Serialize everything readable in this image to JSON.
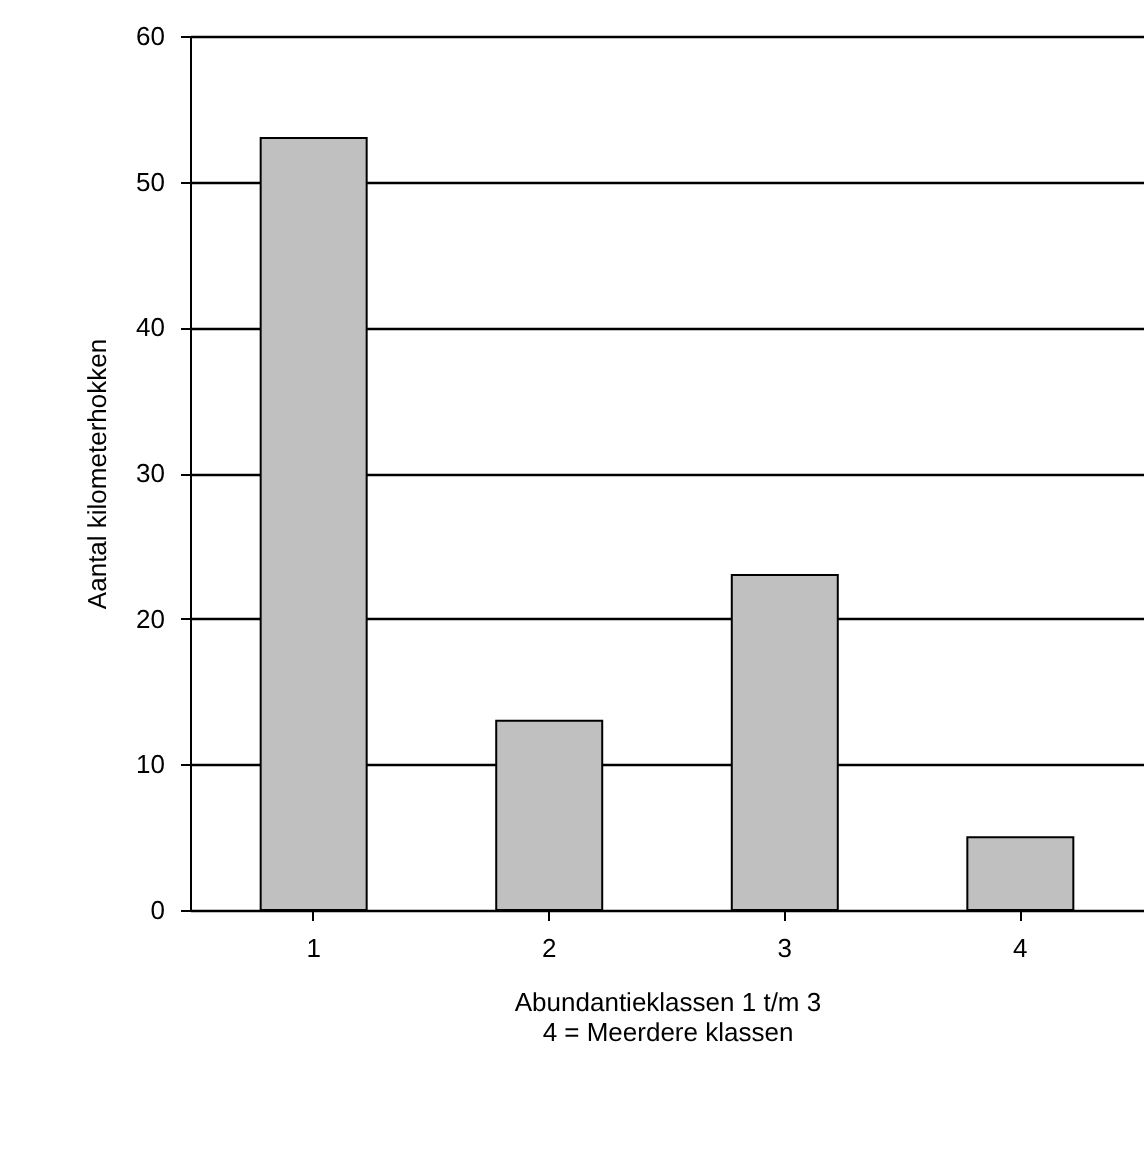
{
  "chart_data": {
    "type": "bar",
    "xlabel": "Abundantieklassen 1 t/m 3\n4 = Meerdere klassen",
    "ylabel": "Aantal kilometerhokken",
    "categories": [
      "1",
      "2",
      "3",
      "4"
    ],
    "values": [
      53,
      13,
      23,
      5
    ],
    "color": "#c0c0c0",
    "ylim": [
      0,
      60
    ],
    "yticks": [
      0,
      10,
      20,
      30,
      40,
      50,
      60
    ],
    "grid": "y"
  }
}
